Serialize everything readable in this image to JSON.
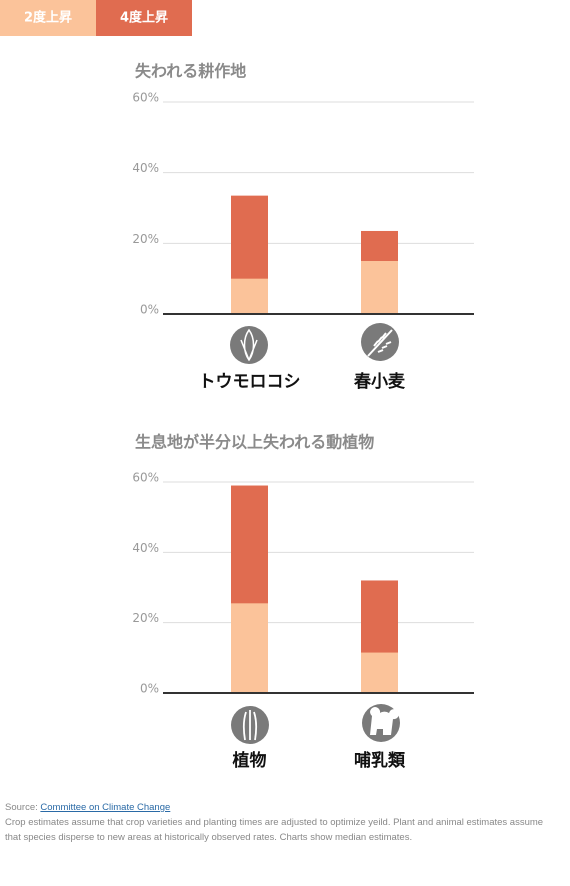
{
  "chart_data": [
    {
      "type": "bar",
      "title": "失われる耕作地",
      "categories": [
        "トウモロコシ",
        "春小麦"
      ],
      "series": [
        {
          "name": "2度上昇",
          "color": "#fbc39a",
          "values": [
            10,
            15
          ]
        },
        {
          "name": "4度上昇",
          "color": "#e06c50",
          "values": [
            33.5,
            23.5
          ]
        }
      ],
      "ylim": [
        0,
        60
      ],
      "yticks": [
        {
          "value": 0,
          "label": "0%"
        },
        {
          "value": 20,
          "label": "20%"
        },
        {
          "value": 40,
          "label": "40%"
        },
        {
          "value": 60,
          "label": "60%"
        }
      ],
      "grid": true
    },
    {
      "type": "bar",
      "title": "生息地が半分以上失われる動植物",
      "categories": [
        "植物",
        "哺乳類"
      ],
      "series": [
        {
          "color": "#fbc39a",
          "values": [
            25.5,
            11.5
          ]
        },
        {
          "color": "#e06c50",
          "values": [
            59,
            32
          ]
        }
      ],
      "ylim": [
        0,
        60
      ],
      "yticks": [
        {
          "value": 0,
          "label": "0%"
        },
        {
          "value": 20,
          "label": "20%"
        },
        {
          "value": 40,
          "label": "40%"
        },
        {
          "value": 60,
          "label": "60%"
        }
      ],
      "grid": true
    }
  ],
  "source": {
    "label": "Source:",
    "link": "Committee on Climate Change",
    "note": "Crop estimates assume that crop varieties and planting times are adjusted to optimize yeild. Plant and animal estimates assume that species disperse to new areas at historically observed rates. Charts show median estimates."
  }
}
